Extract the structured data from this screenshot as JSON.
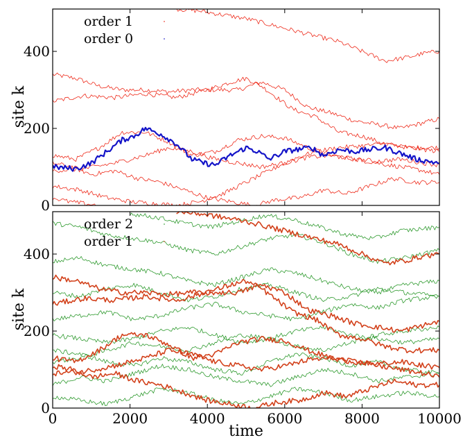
{
  "figure": {
    "xlabel": "time"
  },
  "chart_data": [
    {
      "type": "line",
      "panel": "top",
      "ylabel": "site k",
      "xlim": [
        0,
        10000
      ],
      "ylim": [
        0,
        510
      ],
      "xticks": [],
      "yticks": [
        "0",
        "200",
        "400"
      ],
      "legend": {
        "placement": "top-left",
        "entries": [
          "order 1",
          "order 0"
        ]
      },
      "colors": {
        "order 1": "#ee2a1a",
        "order 0": "#1414c8"
      },
      "series": [
        {
          "name": "order 0",
          "color": "#1414c8",
          "bold": true,
          "x": [
            0,
            600,
            1000,
            1400,
            1800,
            2100,
            2400,
            2800,
            3200,
            3600,
            3900,
            4200,
            4600,
            5000,
            5300,
            5600,
            6000,
            6300,
            6700,
            7000,
            7400,
            7800,
            8200,
            8600,
            9000,
            9400,
            10000
          ],
          "y": [
            100,
            95,
            110,
            140,
            170,
            180,
            200,
            185,
            160,
            120,
            110,
            105,
            130,
            150,
            140,
            120,
            140,
            145,
            150,
            130,
            145,
            140,
            145,
            150,
            135,
            120,
            110
          ]
        },
        {
          "name": "order 1",
          "color": "#ee2a1a",
          "x": [
            0,
            600,
            1200,
            1800,
            2400,
            3000,
            3600,
            4200,
            4800,
            5400,
            6000,
            6600,
            7200,
            7800,
            8400,
            9000,
            9600,
            10000
          ],
          "y": [
            340,
            330,
            310,
            300,
            300,
            295,
            300,
            300,
            300,
            320,
            300,
            255,
            240,
            220,
            210,
            200,
            215,
            225
          ]
        },
        {
          "name": "order 1",
          "color": "#ee2a1a",
          "x": [
            0,
            800,
            1600,
            2400,
            3200,
            4000,
            4600,
            5000,
            5400,
            5800,
            6200,
            6800,
            7400,
            8000,
            8600,
            9200,
            10000
          ],
          "y": [
            270,
            285,
            280,
            290,
            280,
            300,
            320,
            330,
            310,
            280,
            250,
            230,
            190,
            180,
            160,
            150,
            150
          ]
        },
        {
          "name": "order 1",
          "color": "#ee2a1a",
          "x": [
            3200,
            3800,
            4400,
            5000,
            5600,
            6200,
            6800,
            7400,
            8000,
            8600,
            9200,
            9600,
            10000
          ],
          "y": [
            510,
            505,
            495,
            485,
            470,
            455,
            440,
            425,
            400,
            375,
            385,
            395,
            400
          ]
        },
        {
          "name": "order 1",
          "color": "#ee2a1a",
          "x": [
            0,
            600,
            1200,
            1800,
            2400,
            3000,
            3600,
            4200,
            4800,
            5400,
            6000,
            6600,
            7200,
            7800,
            8400,
            9000,
            9600,
            10000
          ],
          "y": [
            130,
            120,
            150,
            190,
            190,
            165,
            130,
            140,
            170,
            180,
            175,
            150,
            130,
            120,
            110,
            100,
            90,
            80
          ]
        },
        {
          "name": "order 1",
          "color": "#ee2a1a",
          "x": [
            0,
            500,
            1000,
            1600,
            2200,
            2800,
            3400,
            4000,
            4600,
            5200,
            5800,
            6400,
            7000,
            7600,
            8200,
            8800,
            9400,
            10000
          ],
          "y": [
            110,
            100,
            80,
            90,
            70,
            60,
            40,
            20,
            10,
            0,
            15,
            20,
            40,
            30,
            50,
            70,
            60,
            60
          ]
        },
        {
          "name": "order 1",
          "color": "#ee2a1a",
          "x": [
            0,
            700,
            1400,
            2000,
            2600,
            3200,
            3800,
            4400,
            5000,
            5600,
            6200,
            6800,
            7400,
            8000,
            8600,
            9200,
            10000
          ],
          "y": [
            50,
            40,
            20,
            10,
            5,
            0,
            10,
            30,
            60,
            90,
            120,
            140,
            150,
            155,
            160,
            150,
            140
          ]
        },
        {
          "name": "order 1",
          "color": "#ee2a1a",
          "x": [
            0,
            800,
            1600,
            2400,
            3000,
            3600,
            4200,
            4800,
            5400,
            6000,
            6600,
            7200,
            7800,
            8400,
            9000,
            9600,
            10000
          ],
          "y": [
            90,
            95,
            110,
            130,
            150,
            140,
            120,
            110,
            100,
            110,
            125,
            130,
            120,
            115,
            120,
            110,
            105
          ]
        },
        {
          "name": "order 1",
          "color": "#ee2a1a",
          "x": [
            0,
            400,
            800,
            1200
          ],
          "y": [
            20,
            10,
            5,
            0
          ]
        }
      ]
    },
    {
      "type": "line",
      "panel": "bottom",
      "xlabel": "time",
      "ylabel": "site k",
      "xlim": [
        0,
        10000
      ],
      "ylim": [
        0,
        510
      ],
      "xticks": [
        "0",
        "2000",
        "4000",
        "6000",
        "8000",
        "10000"
      ],
      "yticks": [
        "0",
        "200",
        "400"
      ],
      "legend": {
        "placement": "top-left",
        "entries": [
          "order 2",
          "order 1"
        ]
      },
      "colors": {
        "order 2": "#2e9a2e",
        "order 1": "#d2401a"
      },
      "series": [
        {
          "name": "order 1",
          "color": "#d2401a",
          "bold": true,
          "x": [
            0,
            600,
            1200,
            1800,
            2400,
            3000,
            3600,
            4200,
            4800,
            5400,
            6000,
            6600,
            7200,
            7800,
            8400,
            9000,
            9600,
            10000
          ],
          "y": [
            340,
            330,
            310,
            300,
            300,
            295,
            300,
            300,
            300,
            320,
            300,
            255,
            240,
            220,
            210,
            200,
            215,
            225
          ]
        },
        {
          "name": "order 1",
          "color": "#d2401a",
          "bold": true,
          "x": [
            0,
            800,
            1600,
            2400,
            3200,
            4000,
            4600,
            5000,
            5400,
            5800,
            6200,
            6800,
            7400,
            8000,
            8600,
            9200,
            10000
          ],
          "y": [
            270,
            285,
            280,
            290,
            280,
            300,
            320,
            330,
            310,
            280,
            250,
            230,
            190,
            180,
            160,
            150,
            150
          ]
        },
        {
          "name": "order 1",
          "color": "#d2401a",
          "bold": true,
          "x": [
            3200,
            3800,
            4400,
            5000,
            5600,
            6200,
            6800,
            7400,
            8000,
            8600,
            9200,
            9600,
            10000
          ],
          "y": [
            510,
            505,
            495,
            485,
            470,
            455,
            440,
            425,
            400,
            375,
            385,
            395,
            400
          ]
        },
        {
          "name": "order 1",
          "color": "#d2401a",
          "bold": true,
          "x": [
            0,
            600,
            1200,
            1800,
            2400,
            3000,
            3600,
            4200,
            4800,
            5400,
            6000,
            6600,
            7200,
            7800,
            8400,
            9000,
            9600,
            10000
          ],
          "y": [
            130,
            120,
            150,
            190,
            190,
            165,
            130,
            140,
            170,
            180,
            175,
            150,
            130,
            120,
            110,
            100,
            90,
            80
          ]
        },
        {
          "name": "order 1",
          "color": "#d2401a",
          "bold": true,
          "x": [
            0,
            500,
            1000,
            1600,
            2200,
            2800,
            3400,
            4000,
            4600,
            5200,
            5800,
            6400,
            7000,
            7600,
            8200,
            8800,
            9400,
            10000
          ],
          "y": [
            110,
            100,
            80,
            90,
            70,
            60,
            40,
            20,
            10,
            0,
            15,
            20,
            40,
            30,
            50,
            70,
            60,
            60
          ]
        },
        {
          "name": "order 1",
          "color": "#d2401a",
          "bold": true,
          "x": [
            0,
            800,
            1600,
            2400,
            3000,
            3600,
            4200,
            4800,
            5400,
            6000,
            6600,
            7200,
            7800,
            8400,
            9000,
            9600,
            10000
          ],
          "y": [
            90,
            95,
            110,
            130,
            150,
            140,
            120,
            110,
            100,
            110,
            125,
            130,
            120,
            115,
            120,
            110,
            105
          ]
        },
        {
          "name": "order 2",
          "color": "#2e9a2e",
          "x": [
            0,
            700,
            1400,
            2100,
            2800,
            3500,
            4200,
            4900,
            5600,
            6300,
            7000,
            7700,
            8400,
            9100,
            10000
          ],
          "y": [
            480,
            470,
            450,
            440,
            430,
            410,
            400,
            420,
            440,
            450,
            430,
            400,
            380,
            390,
            410
          ]
        },
        {
          "name": "order 2",
          "color": "#2e9a2e",
          "x": [
            0,
            700,
            1400,
            2100,
            2800,
            3500,
            4200,
            4900,
            5600,
            6300,
            7000,
            7700,
            8400,
            9100,
            10000
          ],
          "y": [
            380,
            390,
            370,
            360,
            350,
            330,
            320,
            340,
            360,
            350,
            330,
            310,
            300,
            320,
            330
          ]
        },
        {
          "name": "order 2",
          "color": "#2e9a2e",
          "x": [
            0,
            700,
            1400,
            2100,
            2800,
            3500,
            4200,
            4900,
            5600,
            6300,
            7000,
            7700,
            8400,
            9100,
            10000
          ],
          "y": [
            230,
            240,
            250,
            230,
            240,
            260,
            270,
            250,
            240,
            230,
            250,
            270,
            260,
            280,
            290
          ]
        },
        {
          "name": "order 2",
          "color": "#2e9a2e",
          "x": [
            0,
            700,
            1400,
            2100,
            2800,
            3500,
            4200,
            4900,
            5600,
            6300,
            7000,
            7700,
            8400,
            9100,
            10000
          ],
          "y": [
            190,
            180,
            170,
            180,
            200,
            210,
            190,
            170,
            180,
            200,
            210,
            190,
            180,
            170,
            180
          ]
        },
        {
          "name": "order 2",
          "color": "#2e9a2e",
          "x": [
            0,
            700,
            1400,
            2100,
            2800,
            3500,
            4200,
            4900,
            5600,
            6300,
            7000,
            7700,
            8400,
            9100,
            10000
          ],
          "y": [
            60,
            80,
            70,
            90,
            110,
            100,
            80,
            70,
            60,
            80,
            100,
            90,
            70,
            80,
            90
          ]
        },
        {
          "name": "order 2",
          "color": "#2e9a2e",
          "x": [
            0,
            700,
            1400,
            2100,
            2800,
            3500,
            4200,
            4900,
            5600,
            6300,
            7000,
            7700,
            8400,
            9100,
            10000
          ],
          "y": [
            150,
            140,
            120,
            110,
            130,
            120,
            100,
            90,
            120,
            140,
            130,
            110,
            120,
            100,
            90
          ]
        },
        {
          "name": "order 2",
          "color": "#2e9a2e",
          "x": [
            0,
            700,
            1400,
            2100,
            2800,
            3500,
            4200,
            4900,
            5600,
            6300,
            7000,
            7700,
            8400,
            9100,
            10000
          ],
          "y": [
            30,
            20,
            10,
            30,
            50,
            40,
            20,
            10,
            30,
            50,
            40,
            20,
            30,
            40,
            30
          ]
        },
        {
          "name": "order 2",
          "color": "#2e9a2e",
          "x": [
            0,
            700,
            1400,
            2100,
            2800,
            3500,
            4200,
            4900,
            5600,
            6300,
            7000,
            7700,
            8400,
            9100,
            10000
          ],
          "y": [
            300,
            290,
            310,
            320,
            300,
            280,
            290,
            310,
            320,
            300,
            280,
            290,
            310,
            300,
            290
          ]
        },
        {
          "name": "order 2",
          "color": "#2e9a2e",
          "x": [
            2000,
            2700,
            3400,
            4100,
            4800,
            5500,
            6200,
            6900,
            7600,
            8300,
            9000,
            10000
          ],
          "y": [
            505,
            495,
            480,
            470,
            485,
            500,
            490,
            470,
            450,
            440,
            460,
            470
          ]
        },
        {
          "name": "order 2",
          "color": "#2e9a2e",
          "x": [
            0,
            700,
            1400,
            2100,
            2800,
            3500,
            4200,
            4900,
            5600,
            6300,
            7000,
            7700,
            8400,
            9100,
            10000
          ],
          "y": [
            120,
            130,
            150,
            170,
            160,
            150,
            170,
            190,
            180,
            160,
            150,
            170,
            190,
            200,
            210
          ]
        }
      ]
    }
  ]
}
